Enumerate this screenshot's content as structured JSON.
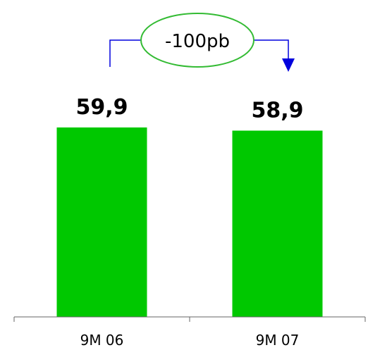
{
  "chart_data": {
    "type": "bar",
    "categories": [
      "9M 06",
      "9M 07"
    ],
    "values": [
      59.9,
      58.9
    ],
    "value_labels": [
      "59,9",
      "58,9"
    ],
    "title": "",
    "xlabel": "",
    "ylabel": "",
    "ylim": [
      0,
      60.5
    ],
    "grid": false,
    "annotation": {
      "text": "-100pb",
      "from_category": "9M 06",
      "to_category": "9M 07"
    }
  },
  "colors": {
    "bar": "#00c800",
    "arrow": "#0000dd",
    "ellipse": "#33bb33",
    "axis": "#666666"
  }
}
